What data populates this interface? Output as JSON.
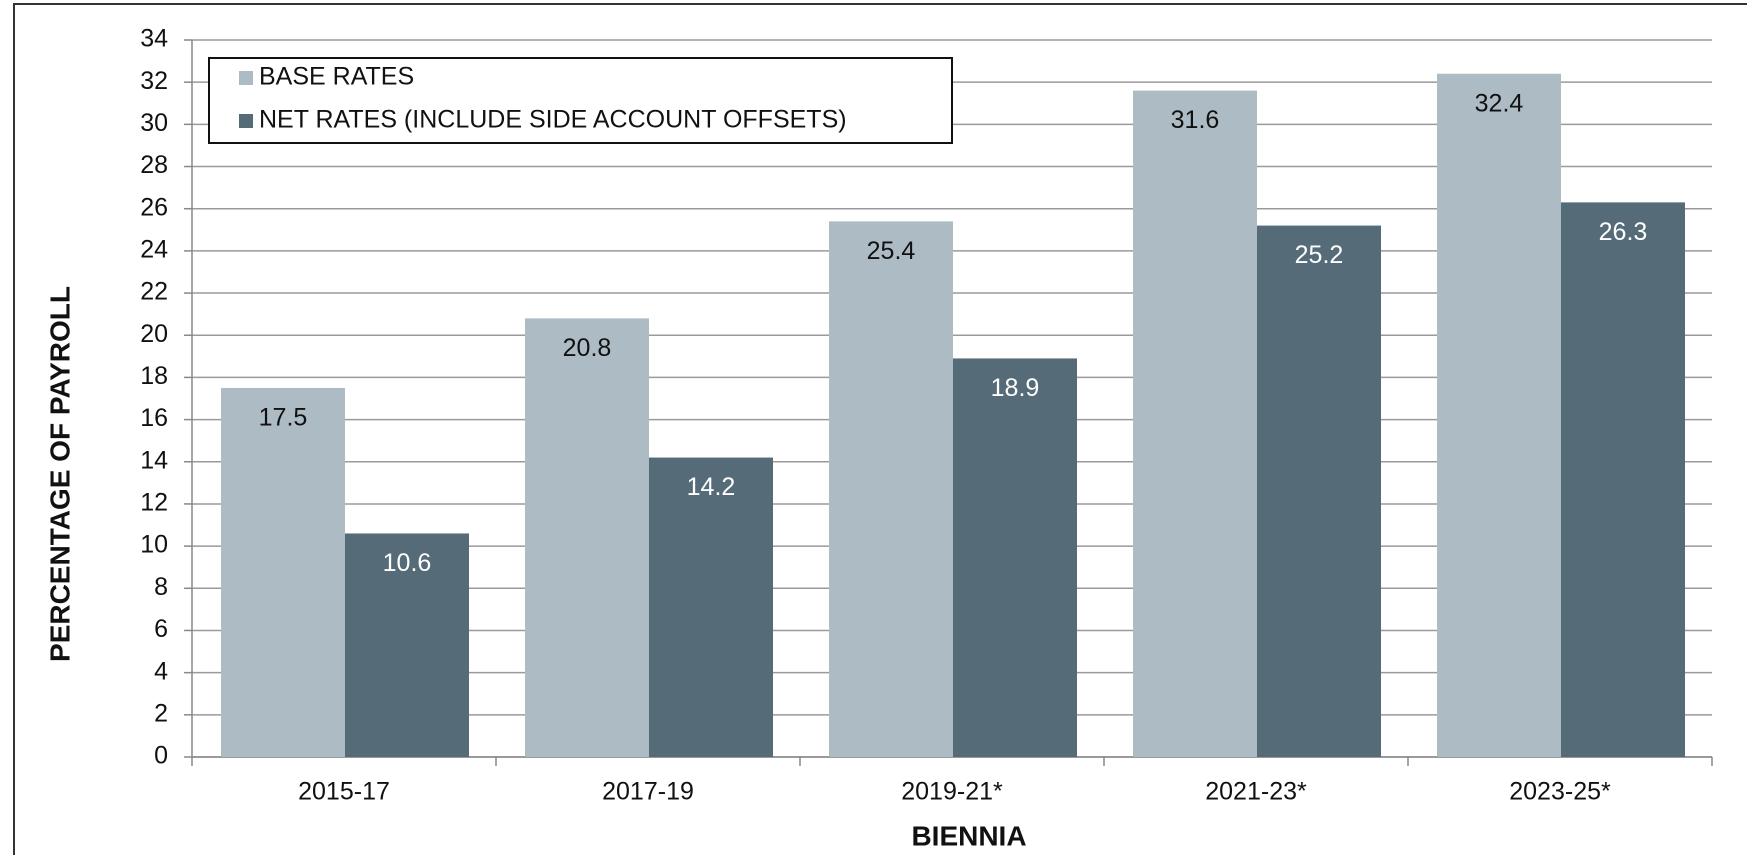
{
  "chart_data": {
    "type": "bar",
    "x_label": "BIENNIA",
    "y_label": "PERCENTAGE OF PAYROLL",
    "categories": [
      "2015-17",
      "2017-19",
      "2019-21*",
      "2021-23*",
      "2023-25*"
    ],
    "series": [
      {
        "name": "BASE RATES",
        "color": "#adbcc4",
        "values": [
          17.5,
          20.8,
          25.4,
          31.6,
          32.4
        ]
      },
      {
        "name": "NET RATES (INCLUDE SIDE ACCOUNT OFFSETS)",
        "color": "#566b78",
        "values": [
          10.6,
          14.2,
          18.9,
          25.2,
          26.3
        ]
      }
    ],
    "ylim": [
      0,
      34
    ],
    "yticks": [
      0,
      2,
      4,
      6,
      8,
      10,
      12,
      14,
      16,
      18,
      20,
      22,
      24,
      26,
      28,
      30,
      32,
      34
    ],
    "grid": true,
    "legend": "top-left"
  }
}
